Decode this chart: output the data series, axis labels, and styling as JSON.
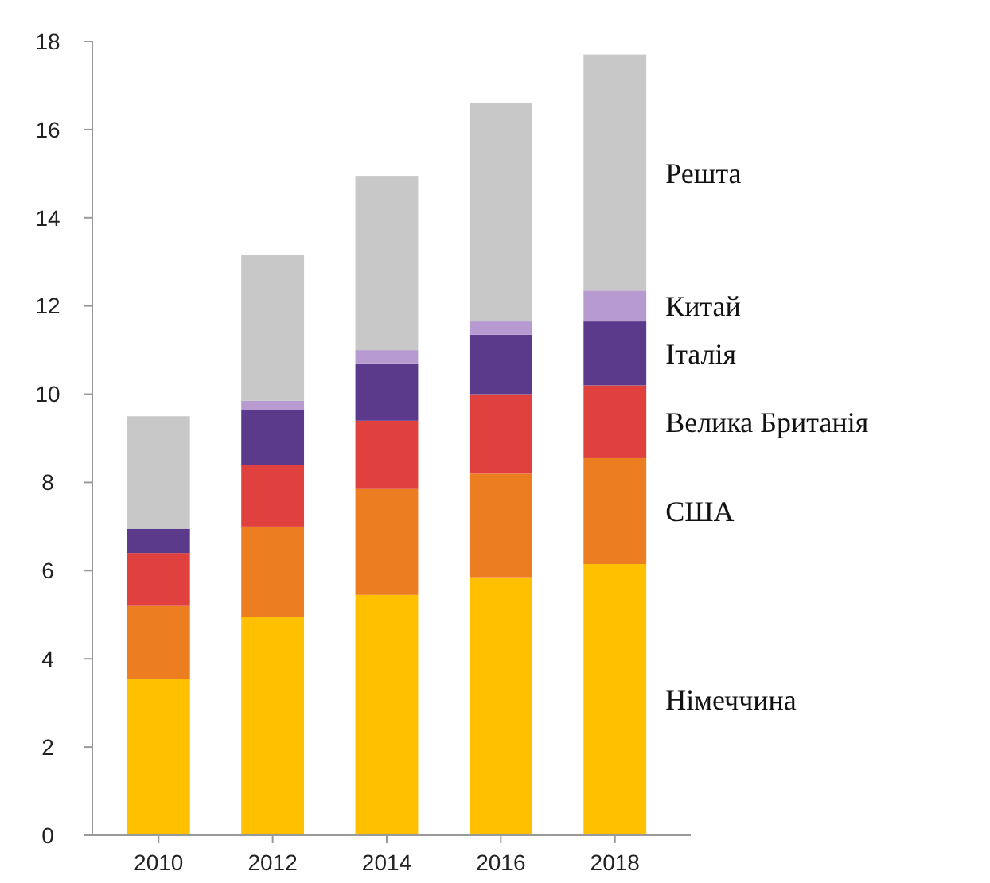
{
  "chart_data": {
    "type": "bar",
    "stacked": true,
    "categories": [
      "2010",
      "2012",
      "2014",
      "2016",
      "2018"
    ],
    "series": [
      {
        "name": "Німеччина",
        "color": "#ffc000",
        "values": [
          3.55,
          4.95,
          5.45,
          5.85,
          6.15
        ]
      },
      {
        "name": "США",
        "color": "#ed7d21",
        "values": [
          1.65,
          2.05,
          2.4,
          2.35,
          2.4
        ]
      },
      {
        "name": "Велика Британія",
        "color": "#e0413e",
        "values": [
          1.2,
          1.4,
          1.55,
          1.8,
          1.65
        ]
      },
      {
        "name": "Італія",
        "color": "#5b3a8c",
        "values": [
          0.55,
          1.25,
          1.3,
          1.35,
          1.45
        ]
      },
      {
        "name": "Китай",
        "color": "#b69ad0",
        "values": [
          0,
          0.2,
          0.3,
          0.3,
          0.7
        ]
      },
      {
        "name": "Решта",
        "color": "#c8c8c8",
        "values": [
          2.55,
          3.3,
          3.95,
          4.95,
          5.35
        ]
      }
    ],
    "ylim": [
      0,
      18
    ],
    "yticks": [
      0,
      2,
      4,
      6,
      8,
      10,
      12,
      14,
      16,
      18
    ],
    "grid": false,
    "legend": "right"
  }
}
